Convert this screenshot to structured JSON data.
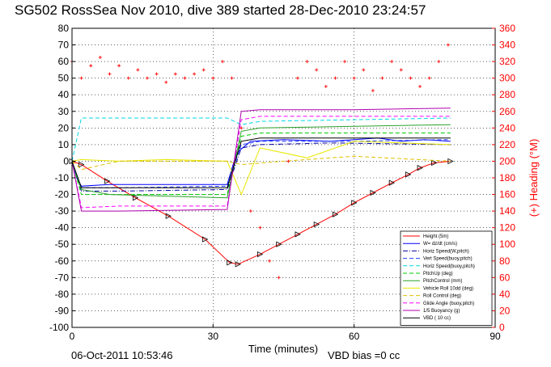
{
  "chart_data": {
    "type": "line",
    "title": "SG502 RossSea Nov 2010, dive 389 started 28-Dec-2010 23:24:57",
    "xlabel": "Time (minutes)",
    "ylabel_right": "(+) Heading (°M)",
    "xlim": [
      0,
      90
    ],
    "ylim": [
      -100,
      80
    ],
    "ylim_right": [
      0,
      360
    ],
    "x_ticks": [
      "0",
      "30",
      "60",
      "90"
    ],
    "y_ticks": [
      "80",
      "70",
      "60",
      "50",
      "40",
      "30",
      "20",
      "10",
      "0",
      "-10",
      "-20",
      "-30",
      "-40",
      "-50",
      "-60",
      "-70",
      "-80",
      "-90",
      "-100"
    ],
    "y_right_ticks": [
      "360",
      "340",
      "320",
      "300",
      "280",
      "260",
      "240",
      "220",
      "200",
      "180",
      "160",
      "140",
      "120",
      "100",
      "80",
      "60",
      "40",
      "20",
      "0"
    ],
    "grid": true,
    "legend_position": "bottom-right",
    "footer_date": "06-Oct-2011 10:53:46",
    "footer_note": "VBD bias =0 cc",
    "series": [
      {
        "name": "Height (5m)",
        "color": "#ff0000",
        "style": "line-triangle",
        "x": [
          0,
          2,
          7.5,
          13.5,
          20.5,
          28.3,
          33.5,
          35.3,
          40,
          44,
          48,
          52,
          56,
          60,
          64,
          68,
          71.5,
          74,
          77,
          80.5
        ],
        "y": [
          0,
          -2,
          -12,
          -22,
          -33,
          -47,
          -61,
          -62,
          -56,
          -50,
          -44,
          -38,
          -32,
          -25,
          -19,
          -13,
          -8,
          -4,
          -1,
          0
        ]
      },
      {
        "name": "W= dz/dt (cm/s)",
        "color": "#0000ff",
        "style": "solid",
        "x": [
          0,
          1,
          2,
          8,
          20,
          33,
          35,
          38,
          45,
          55,
          65,
          70,
          75,
          80.5
        ],
        "y": [
          0,
          -10,
          -15,
          -14,
          -14,
          -14,
          5,
          12,
          13,
          12,
          14,
          12,
          13,
          12
        ]
      },
      {
        "name": "Horiz Speed(W,pitch)",
        "color": "#0000a0",
        "style": "dash-dot",
        "x": [
          0,
          2,
          10,
          33,
          36,
          40,
          55,
          80.5
        ],
        "y": [
          0,
          -18,
          -18,
          -17,
          8,
          10,
          11,
          10
        ]
      },
      {
        "name": "Vert Speed(buoy,pitch)",
        "color": "#1e3cff",
        "style": "dashed",
        "x": [
          0,
          2,
          10,
          33,
          36,
          40,
          60,
          80.5
        ],
        "y": [
          0,
          -16,
          -16,
          -15,
          10,
          12,
          12,
          13
        ]
      },
      {
        "name": "Horiz Speed(buoy,pitch)",
        "color": "#00d7e6",
        "style": "dashed",
        "x": [
          0,
          2,
          10,
          33,
          36,
          40,
          60,
          80.5
        ],
        "y": [
          0,
          26,
          26,
          26,
          22,
          24,
          25,
          26
        ]
      },
      {
        "name": "PitchUp (deg)",
        "color": "#00cc00",
        "style": "dashed",
        "x": [
          0,
          2,
          10,
          33,
          36,
          40,
          60,
          80.5
        ],
        "y": [
          0,
          -20,
          -20,
          -20,
          15,
          17,
          17,
          17
        ]
      },
      {
        "name": "PitchControl (mm)",
        "color": "#2ca02c",
        "style": "solid",
        "x": [
          0,
          2,
          8,
          20,
          33,
          36,
          40,
          60,
          80.5
        ],
        "y": [
          0,
          -17,
          -20,
          -21,
          -22,
          18,
          20,
          21,
          22
        ]
      },
      {
        "name": "Vehicle Roll 10dd (deg)",
        "color": "#e8e800",
        "style": "solid",
        "x": [
          0,
          2,
          10,
          20,
          33,
          36,
          40,
          50,
          60,
          80.5
        ],
        "y": [
          0,
          1,
          0,
          1,
          0,
          -20,
          8,
          2,
          12,
          10
        ]
      },
      {
        "name": "Roll Control (deg)",
        "color": "#e0c000",
        "style": "dashed",
        "x": [
          0,
          2,
          10,
          33,
          36,
          45,
          60,
          80.5
        ],
        "y": [
          0,
          -5,
          0,
          0,
          -2,
          0,
          3,
          0
        ]
      },
      {
        "name": "Glide Angle (buoy,pitch)",
        "color": "#ff00ff",
        "style": "dashed",
        "x": [
          0,
          2,
          10,
          33,
          36,
          40,
          60,
          80.5
        ],
        "y": [
          0,
          -28,
          -27,
          -27,
          25,
          27,
          27,
          27
        ]
      },
      {
        "name": "1/5 Buoyancy (g)",
        "color": "#b000b0",
        "style": "solid",
        "x": [
          0,
          2,
          10,
          33,
          36,
          40,
          60,
          80.5
        ],
        "y": [
          0,
          -30,
          -30,
          -29,
          30,
          31,
          31,
          32
        ]
      },
      {
        "name": "VBD ( 10 cc)",
        "color": "#000000",
        "style": "solid",
        "x": [
          0,
          2,
          10,
          33,
          36,
          40,
          60,
          80.5
        ],
        "y": [
          0,
          -16,
          -16,
          -16,
          12,
          14,
          14,
          14
        ]
      }
    ],
    "heading_series": {
      "name": "Heading",
      "color": "#ff0000",
      "style": "plus-markers",
      "x": [
        0,
        2,
        4,
        6,
        8,
        10,
        12,
        14,
        16,
        18,
        20,
        22,
        24,
        26,
        28,
        30,
        32,
        34,
        36,
        38,
        40,
        42,
        44,
        46,
        48,
        50,
        52,
        54,
        56,
        58,
        60,
        62,
        64,
        66,
        68,
        70,
        72,
        74,
        76,
        78,
        80
      ],
      "y": [
        320,
        300,
        315,
        325,
        305,
        315,
        300,
        310,
        300,
        305,
        295,
        305,
        300,
        305,
        310,
        300,
        320,
        300,
        240,
        140,
        120,
        80,
        60,
        200,
        300,
        320,
        310,
        290,
        300,
        320,
        300,
        310,
        285,
        300,
        320,
        310,
        300,
        290,
        300,
        320,
        340
      ]
    }
  }
}
